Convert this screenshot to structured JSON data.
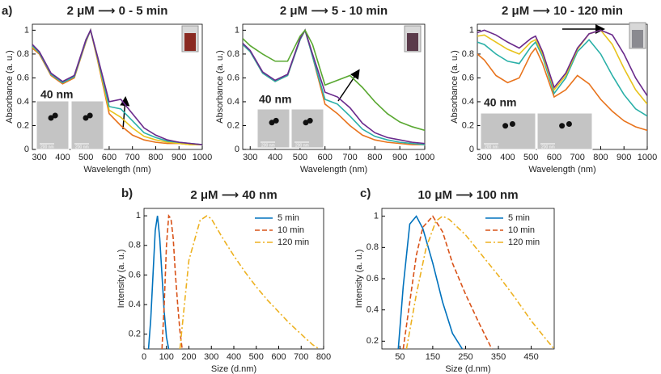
{
  "chart_data": [
    {
      "type": "line",
      "label": "a)",
      "title": "2 μM ⟶ 0 - 5 min",
      "xlabel": "Wavelength (nm)",
      "ylabel": "Absorbance (a. u.)",
      "annotations": [
        "40 nm",
        "200 nm",
        "200 nm"
      ],
      "x": [
        270,
        300,
        350,
        400,
        450,
        500,
        520,
        550,
        600,
        650,
        700,
        750,
        800,
        850,
        900,
        950,
        1000
      ],
      "xlim": [
        270,
        1000
      ],
      "xticks": [
        300,
        400,
        500,
        600,
        700,
        800,
        900,
        1000
      ],
      "ylim": [
        0,
        1.05
      ],
      "yticks": [
        0,
        0.2,
        0.4,
        0.6,
        0.8,
        1
      ],
      "series": [
        {
          "color": "#e8731c",
          "values": [
            0.85,
            0.8,
            0.62,
            0.55,
            0.6,
            0.9,
            1,
            0.75,
            0.3,
            0.2,
            0.12,
            0.08,
            0.06,
            0.05,
            0.05,
            0.04,
            0.04
          ]
        },
        {
          "color": "#e8c31c",
          "values": [
            0.86,
            0.81,
            0.63,
            0.56,
            0.61,
            0.91,
            1,
            0.76,
            0.33,
            0.27,
            0.18,
            0.11,
            0.08,
            0.06,
            0.05,
            0.04,
            0.04
          ]
        },
        {
          "color": "#2ab0a8",
          "values": [
            0.87,
            0.81,
            0.63,
            0.56,
            0.61,
            0.91,
            1,
            0.77,
            0.36,
            0.34,
            0.24,
            0.14,
            0.1,
            0.07,
            0.06,
            0.05,
            0.04
          ]
        },
        {
          "color": "#6a2a8c",
          "values": [
            0.88,
            0.82,
            0.64,
            0.57,
            0.62,
            0.92,
            1,
            0.78,
            0.4,
            0.42,
            0.3,
            0.18,
            0.12,
            0.08,
            0.06,
            0.05,
            0.04
          ]
        }
      ]
    },
    {
      "type": "line",
      "title": "2 μM ⟶ 5 - 10 min",
      "xlabel": "Wavelength (nm)",
      "ylabel": "Absorbance (a. u.)",
      "annotations": [
        "40 nm",
        "200 nm",
        "200 nm"
      ],
      "x": [
        270,
        300,
        350,
        400,
        450,
        500,
        520,
        550,
        600,
        650,
        700,
        750,
        800,
        850,
        900,
        950,
        1000
      ],
      "xlim": [
        270,
        1000
      ],
      "xticks": [
        300,
        400,
        500,
        600,
        700,
        800,
        900,
        1000
      ],
      "ylim": [
        0,
        1.05
      ],
      "yticks": [
        0,
        0.2,
        0.4,
        0.6,
        0.8,
        1
      ],
      "series": [
        {
          "color": "#e8731c",
          "values": [
            0.88,
            0.82,
            0.64,
            0.57,
            0.62,
            0.92,
            1,
            0.78,
            0.38,
            0.3,
            0.2,
            0.12,
            0.08,
            0.06,
            0.05,
            0.04,
            0.04
          ]
        },
        {
          "color": "#2ab0a8",
          "values": [
            0.88,
            0.82,
            0.64,
            0.57,
            0.62,
            0.92,
            1,
            0.78,
            0.42,
            0.38,
            0.28,
            0.17,
            0.11,
            0.08,
            0.06,
            0.05,
            0.04
          ]
        },
        {
          "color": "#6a2a8c",
          "values": [
            0.89,
            0.83,
            0.65,
            0.58,
            0.63,
            0.93,
            1,
            0.8,
            0.48,
            0.44,
            0.35,
            0.22,
            0.14,
            0.1,
            0.08,
            0.06,
            0.05
          ]
        },
        {
          "color": "#5aa832",
          "values": [
            0.93,
            0.87,
            0.8,
            0.74,
            0.74,
            0.95,
            1,
            0.88,
            0.54,
            0.58,
            0.62,
            0.52,
            0.4,
            0.3,
            0.23,
            0.19,
            0.16
          ]
        }
      ]
    },
    {
      "type": "line",
      "title": "2 μM ⟶ 10 - 120 min",
      "xlabel": "Wavelength (nm)",
      "ylabel": "Absorbance (a. u.)",
      "annotations": [
        "40 nm",
        "200 nm",
        "200 nm"
      ],
      "x": [
        270,
        300,
        350,
        400,
        450,
        500,
        520,
        550,
        600,
        650,
        700,
        750,
        800,
        850,
        900,
        950,
        1000
      ],
      "xlim": [
        270,
        1000
      ],
      "xticks": [
        300,
        400,
        500,
        600,
        700,
        800,
        900,
        1000
      ],
      "ylim": [
        0,
        1.05
      ],
      "yticks": [
        0,
        0.2,
        0.4,
        0.6,
        0.8,
        1
      ],
      "series": [
        {
          "color": "#e8731c",
          "values": [
            0.8,
            0.75,
            0.62,
            0.56,
            0.6,
            0.8,
            0.85,
            0.72,
            0.44,
            0.5,
            0.62,
            0.55,
            0.42,
            0.32,
            0.24,
            0.19,
            0.16
          ]
        },
        {
          "color": "#2ab0a8",
          "values": [
            0.9,
            0.88,
            0.8,
            0.74,
            0.72,
            0.86,
            0.9,
            0.78,
            0.47,
            0.6,
            0.82,
            0.92,
            0.8,
            0.62,
            0.46,
            0.34,
            0.28
          ]
        },
        {
          "color": "#e8c31c",
          "values": [
            0.95,
            0.96,
            0.9,
            0.84,
            0.8,
            0.9,
            0.92,
            0.8,
            0.5,
            0.62,
            0.84,
            0.97,
            1,
            0.88,
            0.68,
            0.5,
            0.38
          ]
        },
        {
          "color": "#6a2a8c",
          "values": [
            0.98,
            1,
            0.96,
            0.9,
            0.85,
            0.93,
            0.95,
            0.82,
            0.52,
            0.64,
            0.85,
            0.97,
            1,
            0.96,
            0.8,
            0.6,
            0.45
          ]
        }
      ]
    },
    {
      "type": "line",
      "label": "b)",
      "title": "2 μM ⟶ 40 nm",
      "xlabel": "Size (d.nm)",
      "ylabel": "Intensity (a. u.)",
      "xlim": [
        0,
        800
      ],
      "xticks": [
        0,
        100,
        200,
        300,
        400,
        500,
        600,
        700,
        800
      ],
      "ylim": [
        0.1,
        1.05
      ],
      "yticks": [
        0.2,
        0.4,
        0.6,
        0.8,
        1
      ],
      "legend": "upper right",
      "series": [
        {
          "name": "5 min",
          "color": "#0072bd",
          "dash": "solid",
          "x": [
            20,
            30,
            40,
            50,
            60,
            70,
            80,
            90,
            100,
            110
          ],
          "values": [
            0.1,
            0.3,
            0.6,
            0.9,
            1,
            0.85,
            0.6,
            0.35,
            0.18,
            0.1
          ]
        },
        {
          "name": "10 min",
          "color": "#d95319",
          "dash": "dashed",
          "x": [
            80,
            90,
            100,
            110,
            120,
            130,
            140,
            150,
            160,
            170
          ],
          "values": [
            0.1,
            0.4,
            0.8,
            1,
            0.98,
            0.85,
            0.6,
            0.4,
            0.22,
            0.1
          ]
        },
        {
          "name": "120 min",
          "color": "#edb120",
          "dash": "dashdot",
          "x": [
            160,
            180,
            200,
            250,
            280,
            300,
            350,
            400,
            450,
            500,
            550,
            600,
            650,
            700,
            750,
            780
          ],
          "values": [
            0.1,
            0.4,
            0.7,
            0.97,
            1,
            0.98,
            0.85,
            0.73,
            0.62,
            0.52,
            0.43,
            0.35,
            0.27,
            0.2,
            0.13,
            0.1
          ]
        }
      ]
    },
    {
      "type": "line",
      "label": "c)",
      "title": "10 μM ⟶ 100 nm",
      "xlabel": "Size (d.nm)",
      "ylabel": "Intensity (a. u.)",
      "xlim": [
        -5,
        520
      ],
      "xticks": [
        50,
        150,
        250,
        350,
        450
      ],
      "ylim": [
        0.15,
        1.05
      ],
      "yticks": [
        0.2,
        0.4,
        0.6,
        0.8,
        1
      ],
      "legend": "upper right",
      "series": [
        {
          "name": "5 min",
          "color": "#0072bd",
          "dash": "solid",
          "x": [
            45,
            60,
            80,
            100,
            120,
            150,
            180,
            210,
            240
          ],
          "values": [
            0.15,
            0.55,
            0.95,
            1,
            0.92,
            0.7,
            0.45,
            0.25,
            0.15
          ]
        },
        {
          "name": "10 min",
          "color": "#d95319",
          "dash": "dashed",
          "x": [
            60,
            80,
            100,
            120,
            150,
            180,
            210,
            250,
            290,
            330
          ],
          "values": [
            0.15,
            0.45,
            0.75,
            0.93,
            1,
            0.9,
            0.7,
            0.5,
            0.32,
            0.15
          ]
        },
        {
          "name": "120 min",
          "color": "#edb120",
          "dash": "dashdot",
          "x": [
            70,
            100,
            130,
            160,
            180,
            200,
            250,
            300,
            350,
            400,
            450,
            500,
            520
          ],
          "values": [
            0.15,
            0.5,
            0.8,
            0.97,
            1,
            0.98,
            0.88,
            0.75,
            0.62,
            0.48,
            0.33,
            0.2,
            0.15
          ]
        }
      ]
    }
  ]
}
